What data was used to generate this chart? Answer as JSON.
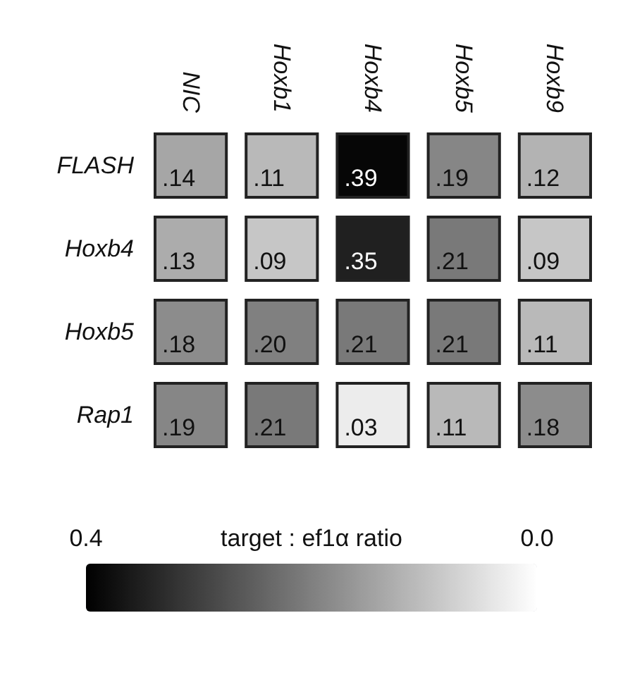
{
  "chart_data": {
    "type": "heatmap",
    "categories": [
      "NIC",
      "Hoxb1",
      "Hoxb4",
      "Hoxb5",
      "Hoxb9"
    ],
    "y_categories": [
      "FLASH",
      "Hoxb4",
      "Hoxb5",
      "Rap1"
    ],
    "cells": [
      [
        0.14,
        0.11,
        0.39,
        0.19,
        0.12
      ],
      [
        0.13,
        0.09,
        0.35,
        0.21,
        0.09
      ],
      [
        0.18,
        0.2,
        0.21,
        0.21,
        0.11
      ],
      [
        0.19,
        0.21,
        0.03,
        0.11,
        0.18
      ]
    ],
    "cell_labels": [
      [
        ".14",
        ".11",
        ".39",
        ".19",
        ".12"
      ],
      [
        ".13",
        ".09",
        ".35",
        ".21",
        ".09"
      ],
      [
        ".18",
        ".20",
        ".21",
        ".21",
        ".11"
      ],
      [
        ".19",
        ".21",
        ".03",
        ".11",
        ".18"
      ]
    ],
    "clim": [
      0,
      0.4
    ],
    "cticks": [
      {
        "value": 0.4,
        "label": "0.4"
      },
      {
        "value": 0,
        "label": "0.0"
      }
    ],
    "clabel": "target : ef1α ratio"
  }
}
